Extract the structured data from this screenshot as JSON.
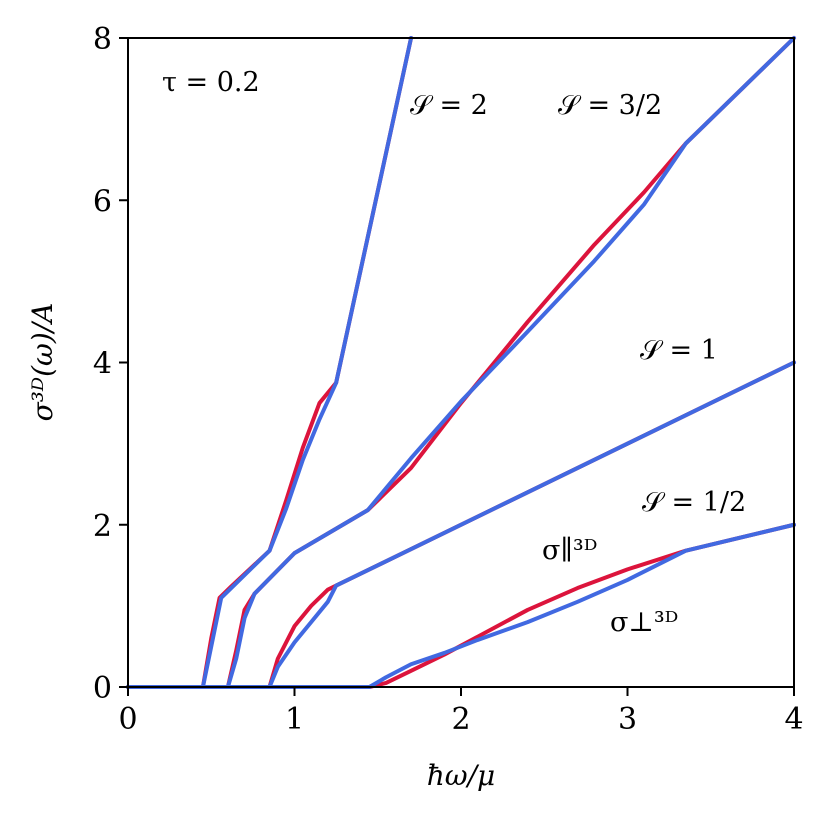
{
  "chart_data": {
    "type": "line",
    "xlabel": "ħω/μ",
    "ylabel": "σ³ᴰ(ω)/A",
    "xlim": [
      0,
      4
    ],
    "ylim": [
      0,
      8
    ],
    "xticks": [
      "0",
      "1",
      "2",
      "3",
      "4"
    ],
    "yticks": [
      "0",
      "2",
      "4",
      "6",
      "8"
    ],
    "grid": false,
    "colors": {
      "parallel": "#dc143c",
      "perpendicular": "#4169e1"
    },
    "annotations": {
      "tau": "τ = 0.2",
      "s2": "𝒮 = 2",
      "s32": "𝒮 = 3/2",
      "s1": "𝒮 = 1",
      "s12": "𝒮 = 1/2",
      "sigma_par": "σ∥³ᴰ",
      "sigma_perp": "σ⊥³ᴰ"
    },
    "series": [
      {
        "name": "σ∥³ᴰ",
        "group": "S=2",
        "color": "#dc143c",
        "x": [
          0,
          0.45,
          0.5,
          0.55,
          0.62,
          0.85,
          0.95,
          1.05,
          1.15,
          1.25,
          1.7
        ],
        "y": [
          0,
          0,
          0.6,
          1.1,
          1.24,
          1.68,
          2.3,
          2.95,
          3.5,
          3.75,
          8.0
        ]
      },
      {
        "name": "σ⊥³ᴰ",
        "group": "S=2",
        "color": "#4169e1",
        "x": [
          0,
          0.45,
          0.5,
          0.56,
          0.62,
          0.85,
          0.95,
          1.05,
          1.15,
          1.25,
          1.7
        ],
        "y": [
          0,
          0,
          0.5,
          1.1,
          1.22,
          1.68,
          2.2,
          2.8,
          3.3,
          3.75,
          8.0
        ]
      },
      {
        "name": "σ∥³ᴰ",
        "group": "S=3/2",
        "color": "#dc143c",
        "x": [
          0,
          0.6,
          0.65,
          0.7,
          0.76,
          1.0,
          1.44,
          1.7,
          2.0,
          2.4,
          2.8,
          3.1,
          3.35,
          4.0
        ],
        "y": [
          0,
          0,
          0.45,
          0.95,
          1.15,
          1.65,
          2.18,
          2.7,
          3.5,
          4.5,
          5.45,
          6.1,
          6.7,
          8.0
        ]
      },
      {
        "name": "σ⊥³ᴰ",
        "group": "S=3/2",
        "color": "#4169e1",
        "x": [
          0,
          0.6,
          0.65,
          0.7,
          0.76,
          1.0,
          1.44,
          1.7,
          2.0,
          2.4,
          2.8,
          3.1,
          3.35,
          4.0
        ],
        "y": [
          0,
          0,
          0.35,
          0.85,
          1.15,
          1.65,
          2.18,
          2.82,
          3.52,
          4.38,
          5.25,
          5.95,
          6.7,
          8.0
        ]
      },
      {
        "name": "σ∥³ᴰ",
        "group": "S=1",
        "color": "#dc143c",
        "x": [
          0,
          0.85,
          0.9,
          1.0,
          1.1,
          1.2,
          1.25,
          4.0
        ],
        "y": [
          0,
          0,
          0.35,
          0.75,
          1.0,
          1.2,
          1.25,
          4.0
        ]
      },
      {
        "name": "σ⊥³ᴰ",
        "group": "S=1",
        "color": "#4169e1",
        "x": [
          0,
          0.85,
          0.9,
          1.0,
          1.1,
          1.2,
          1.25,
          4.0
        ],
        "y": [
          0,
          0,
          0.25,
          0.55,
          0.8,
          1.05,
          1.25,
          4.0
        ]
      },
      {
        "name": "σ∥³ᴰ",
        "group": "S=1/2",
        "color": "#dc143c",
        "x": [
          0,
          1.45,
          1.55,
          1.7,
          1.9,
          2.1,
          2.4,
          2.7,
          3.0,
          3.35,
          4.0
        ],
        "y": [
          0,
          0,
          0.05,
          0.2,
          0.4,
          0.62,
          0.95,
          1.22,
          1.45,
          1.68,
          2.0
        ]
      },
      {
        "name": "σ⊥³ᴰ",
        "group": "S=1/2",
        "color": "#4169e1",
        "x": [
          0,
          1.45,
          1.55,
          1.7,
          1.9,
          2.1,
          2.4,
          2.7,
          3.0,
          3.35,
          4.0
        ],
        "y": [
          0,
          0,
          0.12,
          0.28,
          0.42,
          0.58,
          0.8,
          1.05,
          1.32,
          1.68,
          2.0
        ]
      }
    ]
  }
}
